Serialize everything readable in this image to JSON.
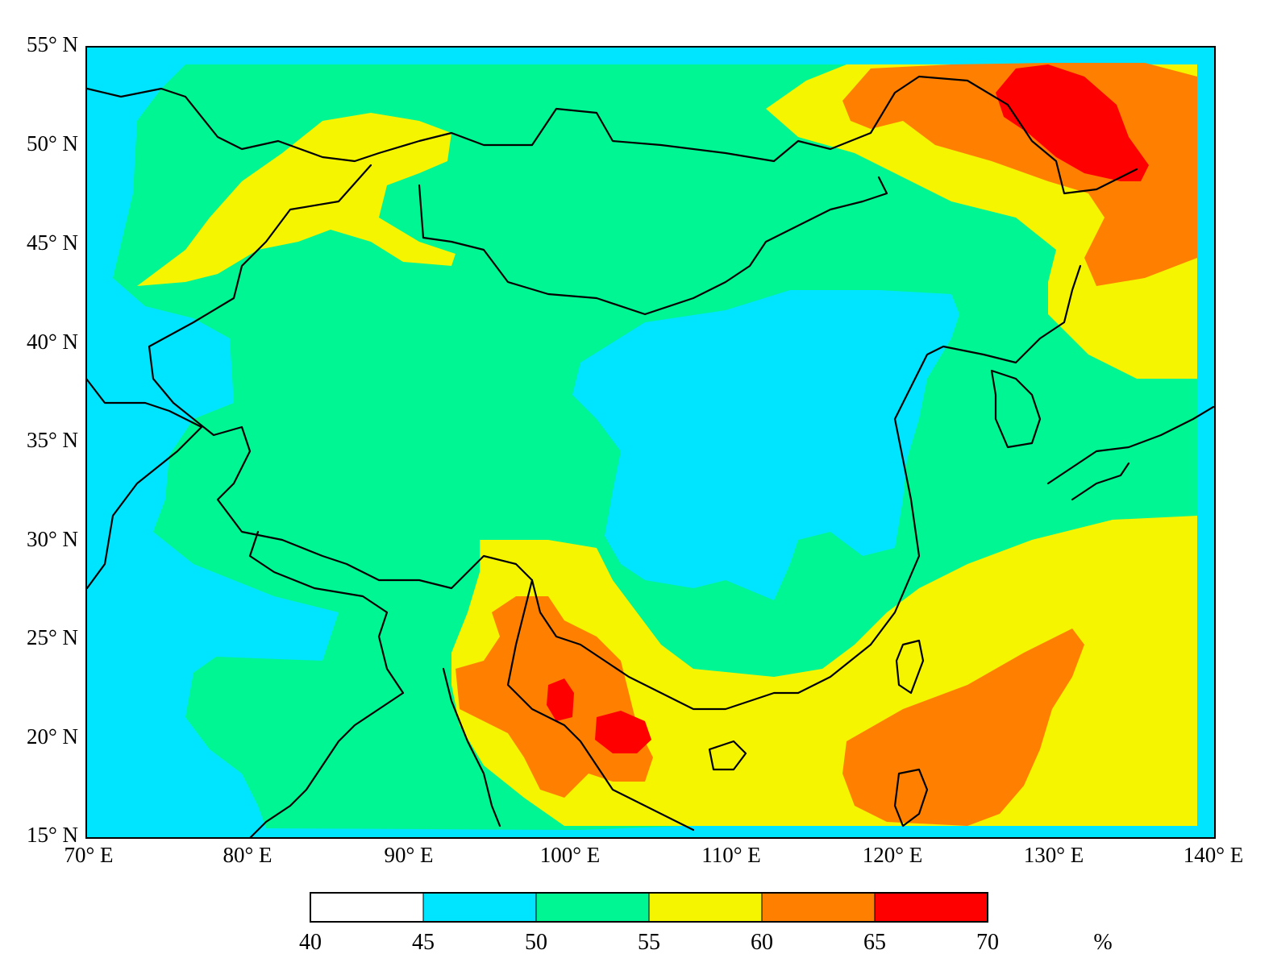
{
  "map": {
    "latitude_labels": [
      "55° N",
      "50° N",
      "45° N",
      "40° N",
      "35° N",
      "30° N",
      "25° N",
      "20° N",
      "15° N"
    ],
    "longitude_labels": [
      "70° E",
      "80° E",
      "90° E",
      "100° E",
      "110° E",
      "120° E",
      "130° E",
      "140° E"
    ],
    "extent": {
      "lon": [
        70,
        140
      ],
      "lat": [
        15,
        55
      ]
    }
  },
  "legend": {
    "unit": "%",
    "ticks": [
      "40",
      "45",
      "50",
      "55",
      "60",
      "65",
      "70"
    ],
    "bins": [
      {
        "from": 40,
        "to": 45,
        "color": "#ffffff"
      },
      {
        "from": 45,
        "to": 50,
        "color": "#00e5ff"
      },
      {
        "from": 50,
        "to": 55,
        "color": "#00f593"
      },
      {
        "from": 55,
        "to": 60,
        "color": "#f5f500"
      },
      {
        "from": 60,
        "to": 65,
        "color": "#ff8000"
      },
      {
        "from": 65,
        "to": 70,
        "color": "#ff0000"
      }
    ]
  }
}
